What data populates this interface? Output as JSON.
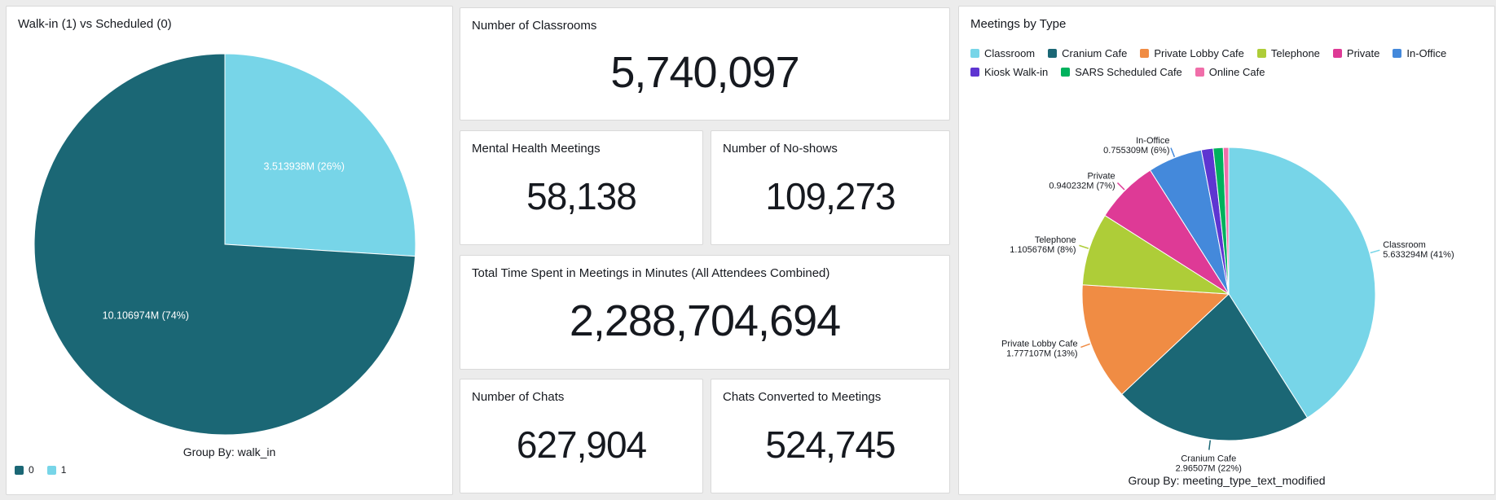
{
  "kpi_cards": {
    "classrooms": {
      "title": "Number of Classrooms",
      "value": "5,740,097"
    },
    "mental_health_meetings": {
      "title": "Mental Health Meetings",
      "value": "58,138"
    },
    "no_shows": {
      "title": "Number of No-shows",
      "value": "109,273"
    },
    "total_minutes": {
      "title": "Total Time Spent in Meetings in Minutes (All Attendees Combined)",
      "value": "2,288,704,694"
    },
    "chats": {
      "title": "Number of Chats",
      "value": "627,904"
    },
    "chats_converted": {
      "title": "Chats Converted to Meetings",
      "value": "524,745"
    }
  },
  "chart_data": [
    {
      "type": "pie",
      "title": "Walk-in (1) vs Scheduled (0)",
      "group_by_label": "Group By: walk_in",
      "legend_position": "bottom-left",
      "slices": [
        {
          "name": "1",
          "value_label": "3.513938M",
          "pct": 26,
          "color": "#77d5e8",
          "slice_label": "3.513938M (26%)",
          "label_style": "inside"
        },
        {
          "name": "0",
          "value_label": "10.106974M",
          "pct": 74,
          "color": "#1b6775",
          "slice_label": "10.106974M (74%)",
          "label_style": "inside"
        }
      ]
    },
    {
      "type": "pie",
      "title": "Meetings by Type",
      "group_by_label": "Group By: meeting_type_text_modified",
      "legend_position": "top",
      "slices": [
        {
          "name": "Classroom",
          "value_label": "5.633294M (41%)",
          "pct": 41,
          "color": "#77d5e8",
          "label_style": "callout"
        },
        {
          "name": "Cranium Cafe",
          "value_label": "2.96507M (22%)",
          "pct": 22,
          "color": "#1b6775",
          "label_style": "callout"
        },
        {
          "name": "Private Lobby Cafe",
          "value_label": "1.777107M (13%)",
          "pct": 13,
          "color": "#f08c44",
          "label_style": "callout"
        },
        {
          "name": "Telephone",
          "value_label": "1.105676M (8%)",
          "pct": 8,
          "color": "#aecd38",
          "label_style": "callout"
        },
        {
          "name": "Private",
          "value_label": "0.940232M (7%)",
          "pct": 7,
          "color": "#de3a96",
          "label_style": "callout"
        },
        {
          "name": "In-Office",
          "value_label": "0.755309M (6%)",
          "pct": 6,
          "color": "#4489db",
          "label_style": "callout"
        },
        {
          "name": "Kiosk Walk-in",
          "value_label": "",
          "pct": 1.3,
          "color": "#5e35d1",
          "label_style": "none"
        },
        {
          "name": "SARS Scheduled Cafe",
          "value_label": "",
          "pct": 1.1,
          "color": "#00b25d",
          "label_style": "none"
        },
        {
          "name": "Online Cafe",
          "value_label": "",
          "pct": 0.6,
          "color": "#f06ea9",
          "label_style": "none"
        }
      ]
    }
  ]
}
